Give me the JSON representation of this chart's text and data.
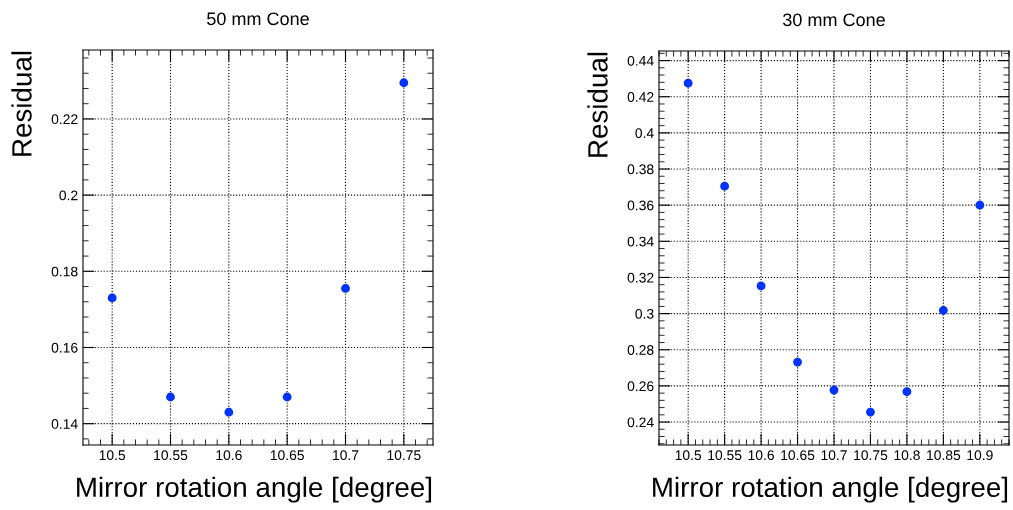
{
  "chart_data": [
    {
      "type": "scatter",
      "title": "50 mm Cone",
      "xlabel": "Mirror rotation angle [degree]",
      "ylabel": "Residual",
      "marker": "circle",
      "grid": true,
      "x": [
        10.5,
        10.55,
        10.6,
        10.65,
        10.7,
        10.75
      ],
      "series": [
        {
          "color": "#0033ff",
          "values": [
            0.173,
            0.147,
            0.143,
            0.147,
            0.1755,
            0.2295
          ]
        }
      ],
      "xlim": [
        10.475,
        10.775
      ],
      "xticks": [
        {
          "value": 10.5,
          "label": "10.5"
        },
        {
          "value": 10.55,
          "label": "10.55"
        },
        {
          "value": 10.6,
          "label": "10.6"
        },
        {
          "value": 10.65,
          "label": "10.65"
        },
        {
          "value": 10.7,
          "label": "10.7"
        },
        {
          "value": 10.75,
          "label": "10.75"
        }
      ],
      "ylim": [
        0.1344,
        0.2381
      ],
      "yticks": [
        0.14,
        0.16,
        0.18,
        {
          "value": 0.2,
          "label": "0.2"
        },
        0.22
      ]
    },
    {
      "type": "scatter",
      "title": "30 mm Cone",
      "xlabel": "Mirror rotation angle [degree]",
      "ylabel": "Residual",
      "marker": "circle",
      "grid": true,
      "x": [
        10.5,
        10.55,
        10.6,
        10.65,
        10.7,
        10.75,
        10.8,
        10.85,
        10.9
      ],
      "series": [
        {
          "color": "#0033ff",
          "values": [
            0.4275,
            0.3705,
            0.3153,
            0.2732,
            0.2577,
            0.2455,
            0.2568,
            0.3018,
            0.36
          ]
        }
      ],
      "xlim": [
        10.46,
        10.94
      ],
      "xticks": [
        {
          "value": 10.5,
          "label": "10.5"
        },
        {
          "value": 10.55,
          "label": "10.55"
        },
        {
          "value": 10.6,
          "label": "10.6"
        },
        {
          "value": 10.65,
          "label": "10.65"
        },
        {
          "value": 10.7,
          "label": "10.7"
        },
        {
          "value": 10.75,
          "label": "10.75"
        },
        {
          "value": 10.8,
          "label": "10.8"
        },
        {
          "value": 10.85,
          "label": "10.85"
        },
        {
          "value": 10.9,
          "label": "10.9"
        }
      ],
      "ylim": [
        0.2273,
        0.4453
      ],
      "yticks": [
        0.24,
        0.26,
        0.28,
        {
          "value": 0.3,
          "label": "0.3"
        },
        0.32,
        0.34,
        0.36,
        0.38,
        {
          "value": 0.4,
          "label": "0.4"
        },
        0.42,
        0.44
      ]
    }
  ]
}
